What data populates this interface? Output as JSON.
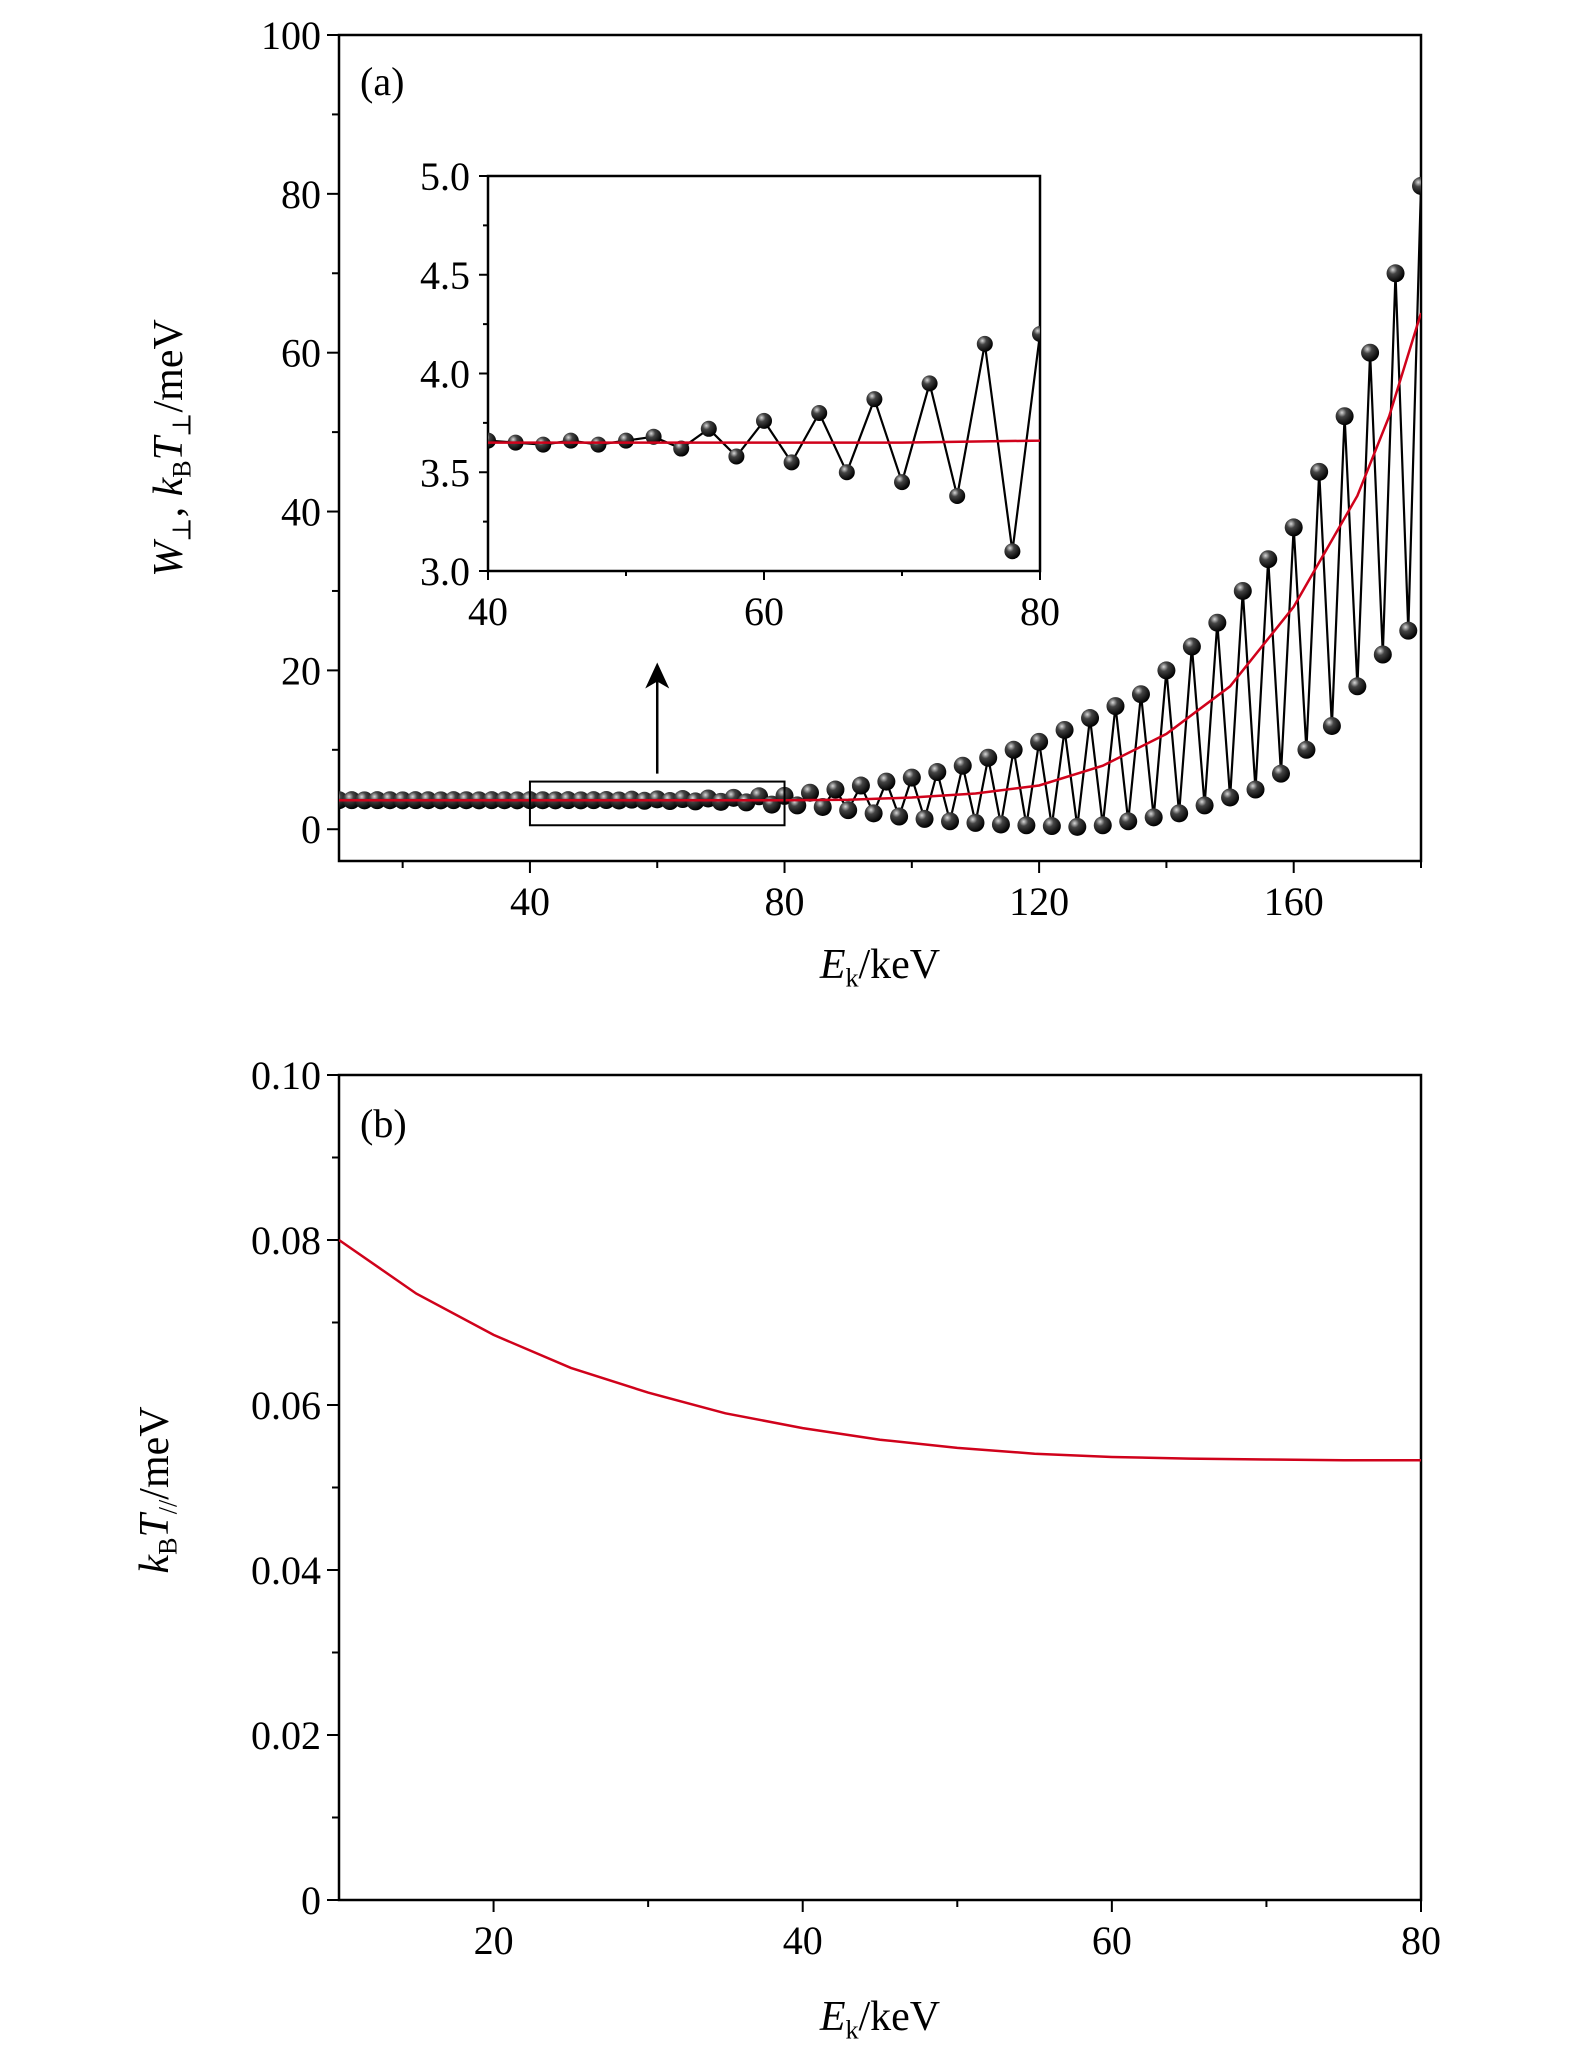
{
  "chart_data": [
    {
      "type": "line",
      "panel_label": "(a)",
      "xlabel_parts": [
        {
          "t": "E",
          "i": true
        },
        {
          "t": "k",
          "sub": true
        },
        {
          "t": "/keV"
        }
      ],
      "ylabel_parts": [
        {
          "t": "W",
          "i": true
        },
        {
          "t": "⊥",
          "sub": true
        },
        {
          "t": ", "
        },
        {
          "t": "k",
          "i": true
        },
        {
          "t": "B",
          "sub": true
        },
        {
          "t": "T",
          "i": true
        },
        {
          "t": "⊥",
          "sub": true
        },
        {
          "t": "/meV"
        }
      ],
      "xlim": [
        10,
        180
      ],
      "ylim": [
        -4,
        100
      ],
      "xticks": [
        40,
        80,
        120,
        160
      ],
      "xtick_labels": [
        "40",
        "80",
        "120",
        "160"
      ],
      "xminor": [
        20,
        60,
        100,
        140,
        180
      ],
      "yticks": [
        0,
        20,
        40,
        60,
        80,
        100
      ],
      "ytick_labels": [
        "0",
        "20",
        "40",
        "60",
        "80",
        "100"
      ],
      "yminor": [
        10,
        30,
        50,
        70,
        90
      ],
      "series": [
        {
          "name": "W_perp (points)",
          "color": "#000000",
          "style": "line+markers",
          "x_start": 10,
          "x_step": 2,
          "values": [
            3.65,
            3.66,
            3.64,
            3.66,
            3.65,
            3.64,
            3.66,
            3.65,
            3.64,
            3.66,
            3.65,
            3.64,
            3.66,
            3.65,
            3.64,
            3.66,
            3.65,
            3.64,
            3.66,
            3.64,
            3.66,
            3.68,
            3.62,
            3.72,
            3.58,
            3.76,
            3.55,
            3.8,
            3.5,
            3.87,
            3.45,
            3.95,
            3.38,
            4.15,
            3.1,
            4.2,
            3.0,
            4.6,
            2.8,
            5.0,
            2.4,
            5.5,
            2.0,
            6.0,
            1.6,
            6.5,
            1.3,
            7.2,
            1.0,
            8,
            0.8,
            9,
            0.6,
            10,
            0.5,
            11,
            0.4,
            12.5,
            0.3,
            14,
            0.5,
            15.5,
            1,
            17,
            1.5,
            20,
            2,
            23,
            3,
            26,
            4,
            30,
            5,
            34,
            7,
            38,
            10,
            45,
            13,
            52,
            18,
            60,
            22,
            70,
            25,
            81
          ]
        },
        {
          "name": "kB T_perp (mean)",
          "color": "#d0021b",
          "style": "line",
          "x": [
            10,
            20,
            30,
            40,
            50,
            60,
            70,
            80,
            90,
            100,
            110,
            120,
            130,
            140,
            150,
            160,
            170,
            175,
            180
          ],
          "values": [
            3.65,
            3.65,
            3.65,
            3.65,
            3.65,
            3.65,
            3.65,
            3.66,
            3.7,
            4.0,
            4.5,
            5.5,
            8,
            12,
            18,
            28,
            42,
            52,
            65
          ]
        }
      ],
      "highlight_box": {
        "x": [
          40,
          80
        ],
        "y": [
          0.5,
          6
        ]
      },
      "arrow": {
        "from": [
          60,
          7
        ],
        "to": [
          60,
          21
        ]
      },
      "inset": {
        "xlim": [
          40,
          80
        ],
        "ylim": [
          3.0,
          5.0
        ],
        "xticks": [
          40,
          60,
          80
        ],
        "xtick_labels": [
          "40",
          "60",
          "80"
        ],
        "xminor": [
          50,
          70
        ],
        "yticks": [
          3.0,
          3.5,
          4.0,
          4.5,
          5.0
        ],
        "ytick_labels": [
          "3.0",
          "3.5",
          "4.0",
          "4.5",
          "5.0"
        ],
        "yminor": [
          3.25,
          3.75,
          4.25,
          4.75
        ]
      }
    },
    {
      "type": "line",
      "panel_label": "(b)",
      "xlabel_parts": [
        {
          "t": "E",
          "i": true
        },
        {
          "t": "k",
          "sub": true
        },
        {
          "t": "/keV"
        }
      ],
      "ylabel_parts": [
        {
          "t": "k",
          "i": true
        },
        {
          "t": "B",
          "sub": true
        },
        {
          "t": "T",
          "i": true
        },
        {
          "t": "//",
          "sub": true
        },
        {
          "t": "/meV"
        }
      ],
      "xlim": [
        10,
        80
      ],
      "ylim": [
        0,
        0.1
      ],
      "xticks": [
        20,
        40,
        60,
        80
      ],
      "xtick_labels": [
        "20",
        "40",
        "60",
        "80"
      ],
      "xminor": [
        30,
        50,
        70
      ],
      "yticks": [
        0,
        0.02,
        0.04,
        0.06,
        0.08,
        0.1
      ],
      "ytick_labels": [
        "0",
        "0.02",
        "0.04",
        "0.06",
        "0.08",
        "0.10"
      ],
      "yminor": [
        0.01,
        0.03,
        0.05,
        0.07,
        0.09
      ],
      "series": [
        {
          "name": "kB T_parallel",
          "color": "#d0021b",
          "style": "line",
          "x": [
            10,
            15,
            20,
            25,
            30,
            35,
            40,
            45,
            50,
            55,
            60,
            65,
            70,
            75,
            80
          ],
          "values": [
            0.08,
            0.0735,
            0.0685,
            0.0645,
            0.0615,
            0.059,
            0.0572,
            0.0558,
            0.0548,
            0.0541,
            0.0537,
            0.0535,
            0.0534,
            0.0533,
            0.0533
          ]
        }
      ]
    }
  ]
}
